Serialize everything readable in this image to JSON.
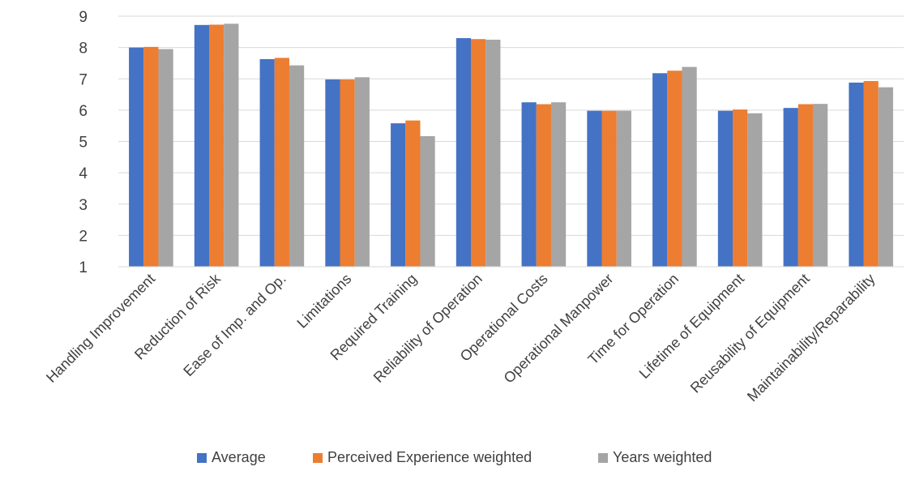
{
  "chart_data": {
    "type": "bar",
    "categories": [
      "Handling Improvement",
      "Reduction of Risk",
      "Ease of Imp. and Op.",
      "Limitations",
      "Required Training",
      "Reliability of Operation",
      "Operational Costs",
      "Operational Manpower",
      "Time for Operation",
      "Lifetime of Equipment",
      "Reusability of Equipment",
      "Maintainability/Reparability"
    ],
    "series": [
      {
        "name": "Average",
        "color": "#4472C4",
        "values": [
          8.0,
          8.72,
          7.63,
          6.98,
          5.58,
          8.3,
          6.25,
          5.98,
          7.18,
          5.98,
          6.07,
          6.88
        ]
      },
      {
        "name": "Perceived Experience weighted",
        "color": "#ED7D31",
        "values": [
          8.02,
          8.73,
          7.67,
          6.98,
          5.67,
          8.27,
          6.19,
          5.98,
          7.26,
          6.02,
          6.19,
          6.93
        ]
      },
      {
        "name": "Years weighted",
        "color": "#A5A5A5",
        "values": [
          7.95,
          8.76,
          7.43,
          7.05,
          5.17,
          8.25,
          6.25,
          5.98,
          7.38,
          5.9,
          6.2,
          6.73
        ]
      }
    ],
    "yticks": [
      "1",
      "2",
      "3",
      "4",
      "5",
      "6",
      "7",
      "8",
      "9"
    ],
    "ylim": [
      1,
      9
    ],
    "grid": true,
    "legend_position": "bottom"
  }
}
